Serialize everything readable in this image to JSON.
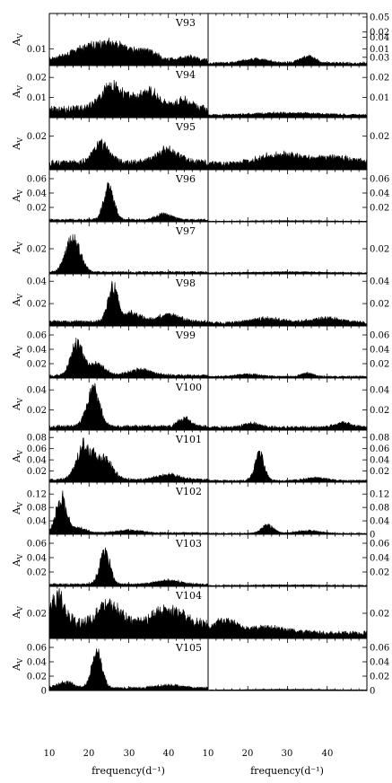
{
  "figure": {
    "ylabel": "A_V",
    "ylabel_main": "A",
    "ylabel_sub": "V",
    "x_left": {
      "xlim": [
        10,
        50
      ],
      "ticks": [
        "10",
        "20",
        "30",
        "40"
      ],
      "xlabel": "frequency(d⁻¹)"
    },
    "x_right": {
      "xlim": [
        10,
        50
      ],
      "ticks": [
        "10",
        "20",
        "30",
        "40"
      ],
      "xlabel": "frequency(d⁻¹)"
    }
  },
  "chart_data": [
    {
      "type": "area",
      "star": "V93",
      "ylim": [
        0,
        0.03
      ],
      "left_ticks": [
        "0.01"
      ],
      "right_ticks": [
        "0.02",
        "0.01"
      ],
      "left_peaks": [
        [
          24,
          0.013,
          7
        ],
        [
          35,
          0.004,
          2
        ],
        [
          45,
          0.003,
          2
        ]
      ],
      "left_noise": 0.004,
      "right_peaks": [
        [
          22,
          0.003,
          3
        ],
        [
          35,
          0.005,
          2
        ]
      ],
      "right_noise": 0.002
    },
    {
      "type": "area",
      "star": "V94",
      "ylim": [
        0,
        0.025
      ],
      "left_ticks": [
        "0.02",
        "0.01"
      ],
      "right_ticks": [
        "0.06",
        "0.05",
        "0.04",
        "0.03",
        "0.02",
        "0.01"
      ],
      "left_peaks": [
        [
          26,
          0.014,
          3
        ],
        [
          35,
          0.01,
          3
        ],
        [
          44,
          0.006,
          2
        ]
      ],
      "left_noise": 0.006,
      "right_peaks": [
        [
          30,
          0.0015,
          10
        ]
      ],
      "right_noise": 0.0015
    },
    {
      "type": "area",
      "star": "V95",
      "ylim": [
        0,
        0.03
      ],
      "left_ticks": [
        "0.02"
      ],
      "right_ticks": [
        "0.02"
      ],
      "left_peaks": [
        [
          23,
          0.014,
          2
        ],
        [
          40,
          0.009,
          3
        ]
      ],
      "left_noise": 0.006,
      "right_peaks": [
        [
          28,
          0.007,
          5
        ],
        [
          42,
          0.005,
          5
        ]
      ],
      "right_noise": 0.005
    },
    {
      "type": "area",
      "star": "V96",
      "ylim": [
        0,
        0.07
      ],
      "left_ticks": [
        "0.06",
        "0.04",
        "0.02"
      ],
      "right_ticks": [
        "0.06",
        "0.04",
        "0.02"
      ],
      "left_peaks": [
        [
          25,
          0.055,
          1.3
        ],
        [
          39,
          0.01,
          2
        ]
      ],
      "left_noise": 0.004,
      "right_peaks": [
        [
          30,
          0.001,
          10
        ]
      ],
      "right_noise": 0.001
    },
    {
      "type": "area",
      "star": "V97",
      "ylim": [
        0,
        0.04
      ],
      "left_ticks": [
        "0.02"
      ],
      "right_ticks": [
        "0.02"
      ],
      "left_peaks": [
        [
          16,
          0.033,
          1.8
        ]
      ],
      "left_noise": 0.002,
      "right_peaks": [
        [
          30,
          0.001,
          10
        ]
      ],
      "right_noise": 0.001
    },
    {
      "type": "area",
      "star": "V98",
      "ylim": [
        0,
        0.045
      ],
      "left_ticks": [
        "0.04",
        "0.02"
      ],
      "right_ticks": [
        "0.04",
        "0.02"
      ],
      "left_peaks": [
        [
          26,
          0.037,
          1.3
        ],
        [
          31,
          0.01,
          2
        ],
        [
          40,
          0.008,
          3
        ]
      ],
      "left_noise": 0.005,
      "right_peaks": [
        [
          25,
          0.005,
          4
        ],
        [
          40,
          0.005,
          4
        ]
      ],
      "right_noise": 0.004
    },
    {
      "type": "area",
      "star": "V99",
      "ylim": [
        0,
        0.07
      ],
      "left_ticks": [
        "0.06",
        "0.04",
        "0.02"
      ],
      "right_ticks": [
        "0.06",
        "0.04",
        "0.02"
      ],
      "left_peaks": [
        [
          17,
          0.056,
          1.5
        ],
        [
          22,
          0.02,
          2
        ],
        [
          33,
          0.01,
          3
        ]
      ],
      "left_noise": 0.005,
      "right_peaks": [
        [
          35,
          0.006,
          1.5
        ],
        [
          20,
          0.004,
          3
        ]
      ],
      "right_noise": 0.003
    },
    {
      "type": "area",
      "star": "V100",
      "ylim": [
        0,
        0.05
      ],
      "left_ticks": [
        "0.04",
        "0.02"
      ],
      "right_ticks": [
        "0.04",
        "0.02"
      ],
      "left_peaks": [
        [
          21,
          0.046,
          1.6
        ],
        [
          44,
          0.01,
          1.5
        ]
      ],
      "left_noise": 0.005,
      "right_peaks": [
        [
          21,
          0.005,
          2
        ],
        [
          44,
          0.006,
          2
        ]
      ],
      "right_noise": 0.004
    },
    {
      "type": "area",
      "star": "V101",
      "ylim": [
        0,
        0.09
      ],
      "left_ticks": [
        "0.08",
        "0.06",
        "0.04",
        "0.02"
      ],
      "right_ticks": [
        "0.08",
        "0.06",
        "0.04",
        "0.02"
      ],
      "left_peaks": [
        [
          19,
          0.08,
          2
        ],
        [
          24,
          0.045,
          2
        ],
        [
          40,
          0.012,
          3
        ]
      ],
      "left_noise": 0.006,
      "right_peaks": [
        [
          23,
          0.058,
          1.2
        ],
        [
          37,
          0.006,
          3
        ]
      ],
      "right_noise": 0.004
    },
    {
      "type": "area",
      "star": "V102",
      "ylim": [
        0,
        0.15
      ],
      "left_ticks": [
        "0.12",
        "0.08",
        "0.04"
      ],
      "right_ticks": [
        "0.12",
        "0.08",
        "0.04",
        "0"
      ],
      "left_peaks": [
        [
          13,
          0.13,
          1.3
        ],
        [
          17,
          0.02,
          2
        ],
        [
          30,
          0.01,
          3
        ]
      ],
      "left_noise": 0.006,
      "right_peaks": [
        [
          25,
          0.03,
          1.5
        ],
        [
          35,
          0.01,
          3
        ]
      ],
      "right_noise": 0.004
    },
    {
      "type": "area",
      "star": "V103",
      "ylim": [
        0,
        0.07
      ],
      "left_ticks": [
        "0.06",
        "0.04",
        "0.02"
      ],
      "right_ticks": [
        "0.06",
        "0.04",
        "0.02"
      ],
      "left_peaks": [
        [
          24,
          0.057,
          1.3
        ],
        [
          40,
          0.007,
          3
        ]
      ],
      "left_noise": 0.004,
      "right_peaks": [
        [
          30,
          0.001,
          10
        ]
      ],
      "right_noise": 0.0015
    },
    {
      "type": "area",
      "star": "V104",
      "ylim": [
        0,
        0.04
      ],
      "left_ticks": [
        "0.02"
      ],
      "right_ticks": [
        "0.02"
      ],
      "left_peaks": [
        [
          12,
          0.03,
          2
        ],
        [
          25,
          0.02,
          3
        ],
        [
          40,
          0.015,
          4
        ]
      ],
      "left_noise": 0.015,
      "right_peaks": [
        [
          14,
          0.012,
          3
        ],
        [
          25,
          0.006,
          5
        ]
      ],
      "right_noise": 0.006
    },
    {
      "type": "area",
      "star": "V105",
      "ylim": [
        0,
        0.07
      ],
      "left_ticks": [
        "0.06",
        "0.04",
        "0.02",
        "0"
      ],
      "right_ticks": [
        "0.06",
        "0.04",
        "0.02",
        "0"
      ],
      "left_peaks": [
        [
          22,
          0.06,
          1.3
        ],
        [
          14,
          0.01,
          2
        ],
        [
          40,
          0.005,
          3
        ]
      ],
      "left_noise": 0.005,
      "right_peaks": [
        [
          30,
          0.001,
          10
        ]
      ],
      "right_noise": 0.001
    }
  ]
}
